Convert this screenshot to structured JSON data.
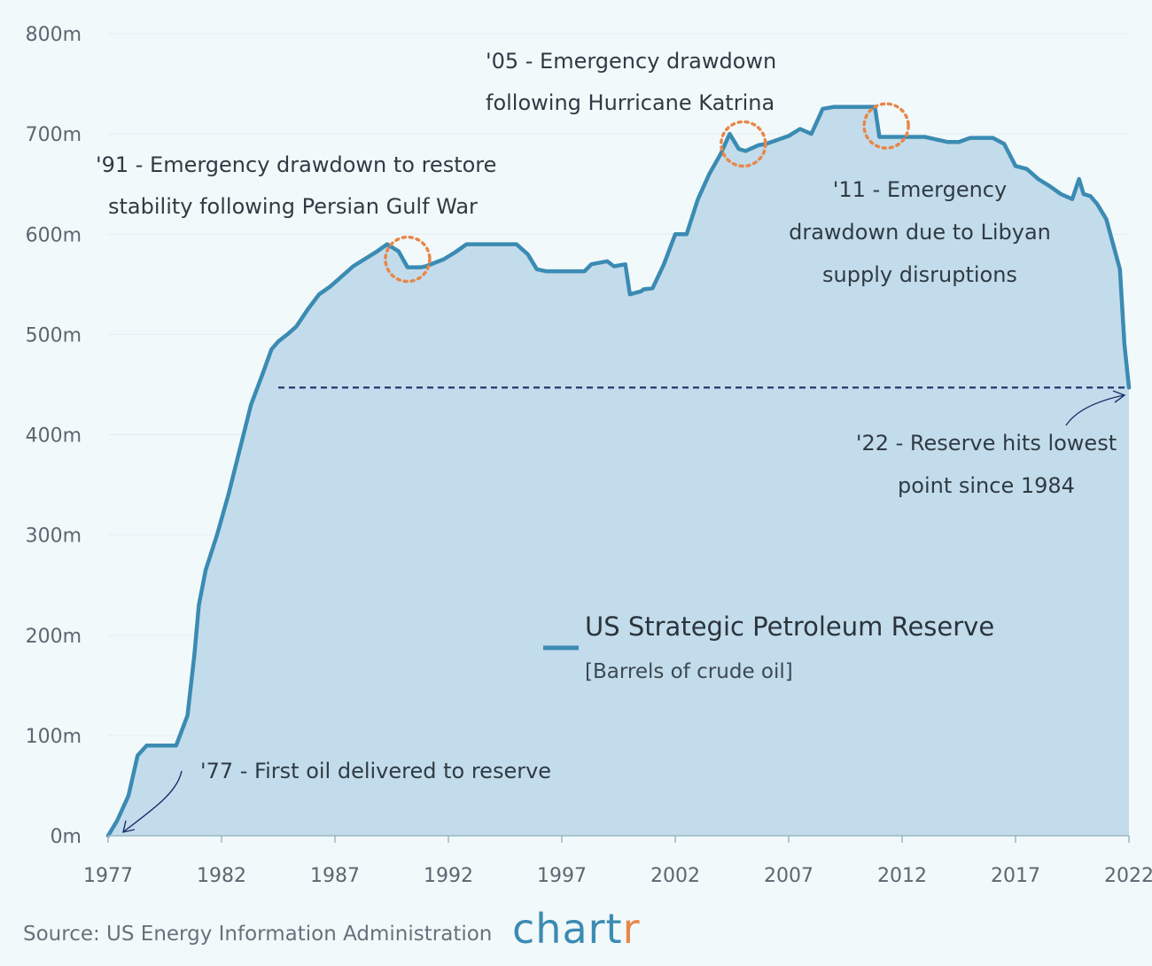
{
  "chart_data": {
    "type": "area",
    "title": "US Strategic Petroleum Reserve",
    "subtitle": "[Barrels of crude oil]",
    "xlabel": "",
    "ylabel": "",
    "xlim": [
      1977,
      2022
    ],
    "ylim": [
      0,
      800
    ],
    "x_ticks": [
      1977,
      1982,
      1987,
      1992,
      1997,
      2002,
      2007,
      2012,
      2017,
      2022
    ],
    "x_tick_labels": [
      "1977",
      "1982",
      "1987",
      "1992",
      "1997",
      "2002",
      "2007",
      "2012",
      "2017",
      "2022"
    ],
    "y_ticks": [
      0,
      100,
      200,
      300,
      400,
      500,
      600,
      700,
      800
    ],
    "y_tick_labels": [
      "0m",
      "100m",
      "200m",
      "300m",
      "400m",
      "500m",
      "600m",
      "700m",
      "800m"
    ],
    "series": [
      {
        "name": "US Strategic Petroleum Reserve",
        "color": "#3b8bb3",
        "fill": "#c3dceb",
        "x": [
          1977.0,
          1977.4,
          1977.9,
          1978.3,
          1978.7,
          1979.0,
          1979.5,
          1980.0,
          1980.5,
          1980.8,
          1981.0,
          1981.3,
          1981.8,
          1982.3,
          1982.8,
          1983.3,
          1983.8,
          1984.2,
          1984.5,
          1984.9,
          1985.3,
          1985.8,
          1986.3,
          1986.8,
          1987.3,
          1987.8,
          1988.3,
          1988.8,
          1989.3,
          1989.8,
          1990.2,
          1990.5,
          1990.8,
          1991.0,
          1991.8,
          1992.3,
          1992.8,
          1993.5,
          1994.0,
          1995.0,
          1995.5,
          1995.9,
          1996.3,
          1997.0,
          1998.0,
          1998.3,
          1999.0,
          1999.3,
          1999.8,
          2000.0,
          2000.5,
          2000.6,
          2001.0,
          2001.5,
          2002.0,
          2002.5,
          2003.0,
          2003.5,
          2004.0,
          2004.4,
          2004.8,
          2005.1,
          2005.3,
          2005.7,
          2006.0,
          2007.0,
          2007.5,
          2008.0,
          2008.3,
          2008.5,
          2009.0,
          2010.0,
          2010.5,
          2010.8,
          2011.0,
          2011.3,
          2012.0,
          2013.0,
          2014.0,
          2014.5,
          2015.0,
          2016.0,
          2016.5,
          2017.0,
          2017.5,
          2018.0,
          2018.5,
          2019.0,
          2019.5,
          2019.8,
          2020.0,
          2020.3,
          2020.6,
          2021.0,
          2021.3,
          2021.6,
          2021.8,
          2022.0
        ],
        "y": [
          0,
          15,
          40,
          80,
          90,
          90,
          90,
          90,
          120,
          180,
          230,
          265,
          300,
          340,
          385,
          430,
          460,
          485,
          493,
          500,
          508,
          525,
          540,
          548,
          558,
          568,
          575,
          582,
          590,
          583,
          567,
          567,
          567,
          568,
          575,
          582,
          590,
          590,
          590,
          590,
          580,
          565,
          563,
          563,
          563,
          570,
          573,
          568,
          570,
          540,
          543,
          545,
          546,
          570,
          600,
          600,
          635,
          660,
          680,
          700,
          685,
          683,
          685,
          689,
          690,
          698,
          705,
          700,
          715,
          725,
          727,
          727,
          727,
          727,
          697,
          697,
          697,
          697,
          692,
          692,
          696,
          696,
          690,
          668,
          665,
          655,
          648,
          640,
          635,
          655,
          640,
          638,
          630,
          615,
          590,
          565,
          490,
          447
        ]
      }
    ],
    "reference_line": {
      "y": 447,
      "x_from": 1984.5,
      "x_to": 2022,
      "style": "dashed",
      "color": "#1a2f6b"
    },
    "highlight_markers": [
      {
        "x": 1990.2,
        "y": 575,
        "color": "#e8874a"
      },
      {
        "x": 2005.0,
        "y": 690,
        "color": "#e8874a"
      },
      {
        "x": 2011.3,
        "y": 708,
        "color": "#e8874a"
      }
    ],
    "annotations": [
      {
        "lines": [
          "'91 - Emergency drawdown to restore",
          "stability following Persian Gulf War"
        ]
      },
      {
        "lines": [
          "'05 - Emergency drawdown",
          "following Hurricane Katrina"
        ]
      },
      {
        "lines": [
          "'11 - Emergency",
          "drawdown due to Libyan",
          "supply disruptions"
        ]
      },
      {
        "lines": [
          "'22 - Reserve hits lowest",
          "point since 1984"
        ]
      },
      {
        "lines": [
          "'77 - First oil delivered to reserve"
        ]
      }
    ],
    "legend": {
      "title": "US Strategic Petroleum Reserve",
      "subtitle": "[Barrels of crude oil]",
      "position": "center"
    },
    "grid": true
  },
  "footer": {
    "source": "Source: US Energy Information Administration",
    "brand_a": "chart",
    "brand_b": "r",
    "brand_a_color": "#3b8bb3",
    "brand_b_color": "#e8874a"
  }
}
